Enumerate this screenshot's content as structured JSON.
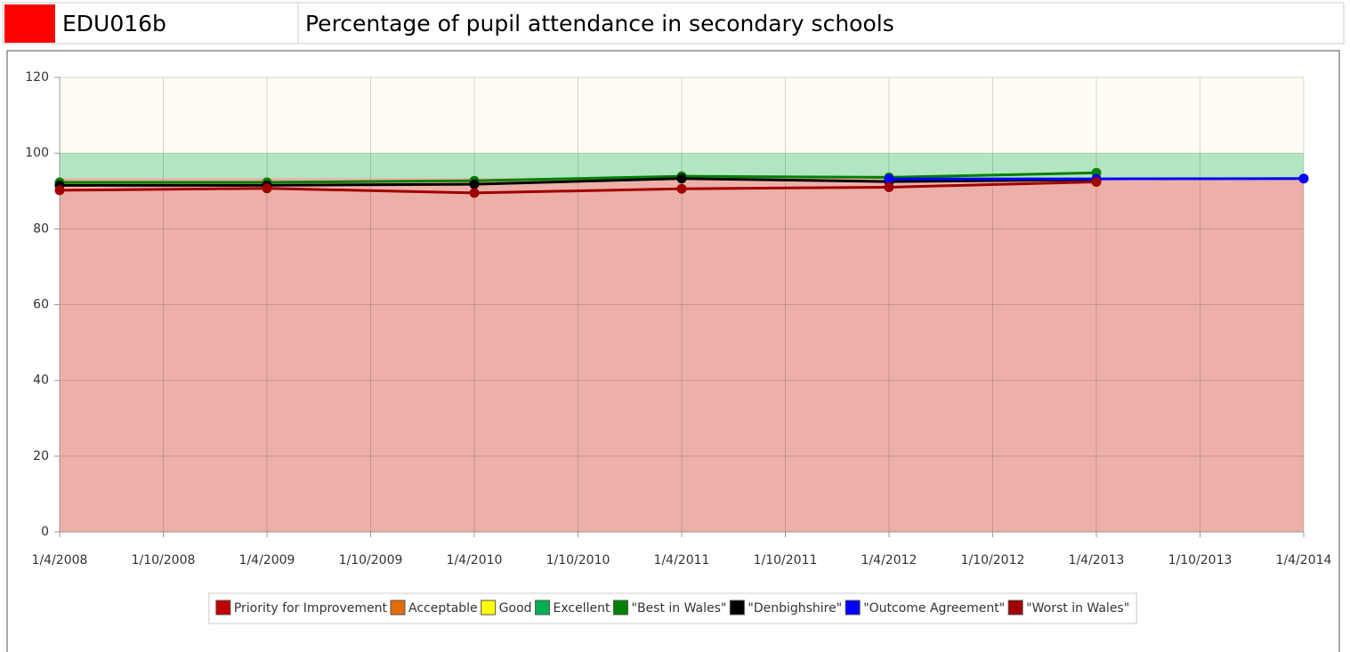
{
  "header": {
    "code": "EDU016b",
    "title": "Percentage of pupil attendance in secondary schools"
  },
  "chart_data": {
    "type": "line",
    "categories": [
      "1/4/2008",
      "1/10/2008",
      "1/4/2009",
      "1/10/2009",
      "1/4/2010",
      "1/10/2010",
      "1/4/2011",
      "1/10/2011",
      "1/4/2012",
      "1/10/2012",
      "1/4/2013",
      "1/10/2013",
      "1/4/2014"
    ],
    "ylim": [
      0,
      120
    ],
    "yticks": [
      0,
      20,
      40,
      60,
      80,
      100,
      120
    ],
    "grid": true,
    "bands": [
      {
        "name": "Priority for Improvement",
        "color": "#c00000",
        "value": 93.4
      },
      {
        "name": "Acceptable",
        "color": "#e46c0a",
        "value": 0
      },
      {
        "name": "Good",
        "color": "#ffff00",
        "value": 0
      },
      {
        "name": "Excellent",
        "color": "#00b050",
        "value": 6.6
      }
    ],
    "series": [
      {
        "name": "\"Best in Wales\"",
        "color": "#008000",
        "x": [
          "1/4/2008",
          "1/4/2009",
          "1/4/2010",
          "1/4/2011",
          "1/4/2012",
          "1/4/2013"
        ],
        "values": [
          92.3,
          92.3,
          92.7,
          93.9,
          93.6,
          94.8
        ]
      },
      {
        "name": "\"Denbighshire\"",
        "color": "#000000",
        "x": [
          "1/4/2008",
          "1/4/2009",
          "1/4/2010",
          "1/4/2011",
          "1/4/2012",
          "1/4/2013"
        ],
        "values": [
          91.5,
          91.5,
          91.8,
          93.3,
          92.5,
          93.0
        ]
      },
      {
        "name": "\"Outcome Agreement\"",
        "color": "#0000ff",
        "x": [
          "1/4/2012",
          "1/4/2013",
          "1/4/2014"
        ],
        "values": [
          93.2,
          93.2,
          93.3
        ]
      },
      {
        "name": "\"Worst in Wales\"",
        "color": "#a00000",
        "x": [
          "1/4/2008",
          "1/4/2009",
          "1/4/2010",
          "1/4/2011",
          "1/4/2012",
          "1/4/2013"
        ],
        "values": [
          90.2,
          90.7,
          89.5,
          90.6,
          91.0,
          92.4
        ]
      }
    ],
    "legend": "bottom"
  }
}
